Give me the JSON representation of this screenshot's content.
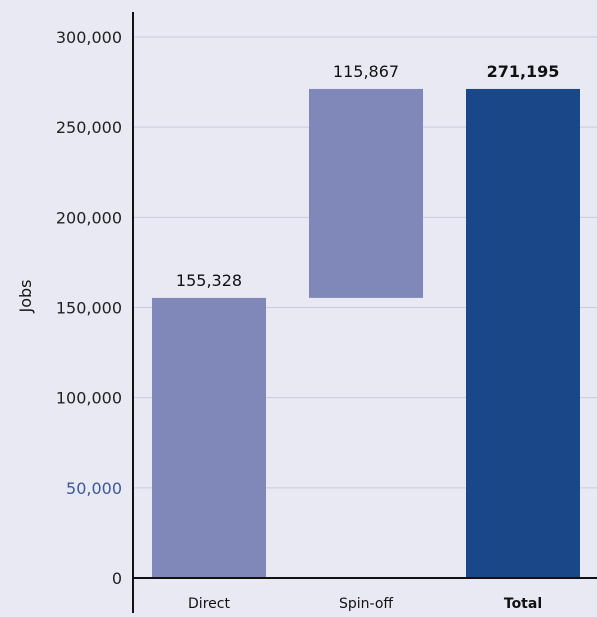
{
  "chart_data": {
    "type": "bar",
    "subtype": "waterfall",
    "title": "",
    "xlabel": "",
    "ylabel": "Jobs",
    "ylim": [
      0,
      300000
    ],
    "y_ticks": [
      0,
      50000,
      100000,
      150000,
      200000,
      250000,
      300000
    ],
    "y_tick_labels": [
      "0",
      "50,000",
      "100,000",
      "150,000",
      "200,000",
      "250,000",
      "300,000"
    ],
    "highlighted_tick": "50,000",
    "grid": true,
    "legend": "none",
    "categories": [
      "Direct",
      "Spin-off",
      "Total"
    ],
    "values": [
      155328,
      115867,
      271195
    ],
    "bar_bottoms": [
      0,
      155328,
      0
    ],
    "data_labels": [
      "155,328",
      "115,867",
      "271,195"
    ],
    "emphasized": [
      false,
      false,
      true
    ],
    "colors": {
      "background": "#e9e9f4",
      "bar": "#7f88b8",
      "total_bar": "#1a4788",
      "grid": "#c9c9dc",
      "axis": "#111111",
      "tick_text": "#222222",
      "highlight_tick_text": "#3a5a9a"
    }
  }
}
